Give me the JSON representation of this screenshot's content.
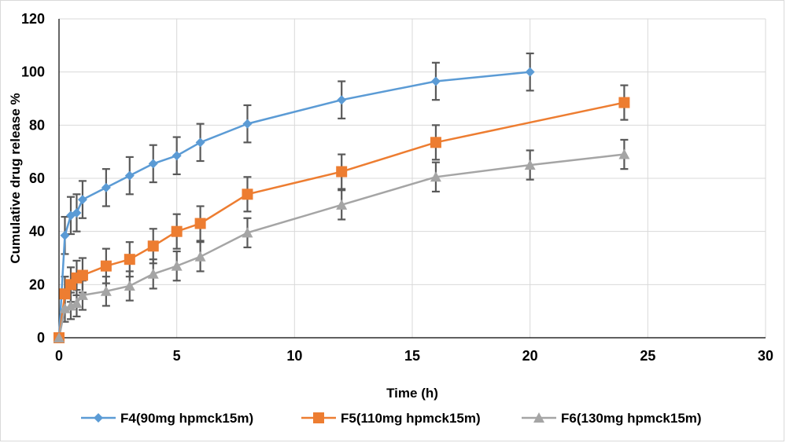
{
  "chart_data": {
    "type": "line",
    "title": "",
    "xlabel": "Time (h)",
    "ylabel": "Cumulative drug release %",
    "xlim": [
      0,
      30
    ],
    "ylim": [
      0,
      120
    ],
    "xticks": [
      0,
      5,
      10,
      15,
      20,
      25,
      30
    ],
    "yticks": [
      0,
      20,
      40,
      60,
      80,
      100,
      120
    ],
    "grid": true,
    "legend_position": "bottom",
    "series": [
      {
        "name": "F4(90mg hpmck15m)",
        "color": "#5b9bd5",
        "marker": "diamond",
        "x": [
          0,
          0.25,
          0.5,
          0.75,
          1,
          2,
          3,
          4,
          5,
          6,
          8,
          12,
          16,
          20
        ],
        "y": [
          0,
          38.5,
          46,
          47,
          52,
          56.5,
          61,
          65.5,
          68.5,
          73.5,
          80.5,
          89.5,
          96.5,
          100
        ],
        "error": [
          0,
          7,
          7,
          7,
          7,
          7,
          7,
          7,
          7,
          7,
          7,
          7,
          7,
          7
        ]
      },
      {
        "name": "F5(110mg hpmck15m)",
        "color": "#ed7d31",
        "marker": "square",
        "x": [
          0,
          0.25,
          0.5,
          0.75,
          1,
          2,
          3,
          4,
          5,
          6,
          8,
          12,
          16,
          24
        ],
        "y": [
          0,
          16.5,
          20,
          22.5,
          23.5,
          27,
          29.5,
          34.5,
          40,
          43,
          54,
          62.5,
          73.5,
          88.5
        ],
        "error": [
          0,
          6.5,
          6.5,
          6.5,
          6.5,
          6.5,
          6.5,
          6.5,
          6.5,
          6.5,
          6.5,
          6.5,
          6.5,
          6.5
        ]
      },
      {
        "name": "F6(130mg hpmck15m)",
        "color": "#a5a5a5",
        "marker": "triangle",
        "x": [
          0,
          0.25,
          0.5,
          0.75,
          1,
          2,
          3,
          4,
          5,
          6,
          8,
          12,
          16,
          20,
          24
        ],
        "y": [
          0,
          11,
          12,
          13,
          16,
          17.5,
          19.5,
          24,
          27,
          30.5,
          39.5,
          50,
          60.5,
          65,
          69
        ],
        "error": [
          0,
          5,
          5,
          5,
          5.5,
          5.5,
          5.5,
          5.5,
          5.5,
          5.5,
          5.5,
          5.5,
          5.5,
          5.5,
          5.5
        ]
      }
    ]
  }
}
